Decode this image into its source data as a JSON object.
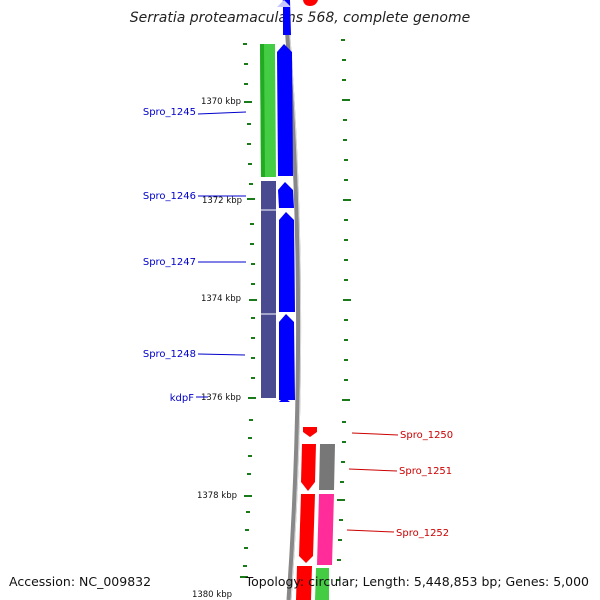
{
  "title": "Serratia proteamaculans 568, complete genome",
  "accession": "Accession: NC_009832",
  "topology": "Topology: circular; Length: 5,448,853 bp; Genes: 5,000",
  "ticks": [
    "1370 kbp",
    "1372 kbp",
    "1374 kbp",
    "1376 kbp",
    "1378 kbp",
    "1380 kbp"
  ],
  "genes_left": [
    "Spro_1245",
    "Spro_1246",
    "Spro_1247",
    "Spro_1248",
    "kdpF"
  ],
  "genes_right": [
    "Spro_1250",
    "Spro_1251",
    "Spro_1252"
  ],
  "colors": {
    "forward_strand": "#0000ff",
    "reverse_strand": "#ff0000",
    "backbone": "#888888",
    "tick": "#1a7a1a",
    "cog_green": "#44cc44",
    "cog_purple": "#4a4a90",
    "cog_gray": "#777777",
    "cog_pink": "#ff2c9a",
    "label_left": "#0000cc",
    "label_right": "#cc0000"
  }
}
